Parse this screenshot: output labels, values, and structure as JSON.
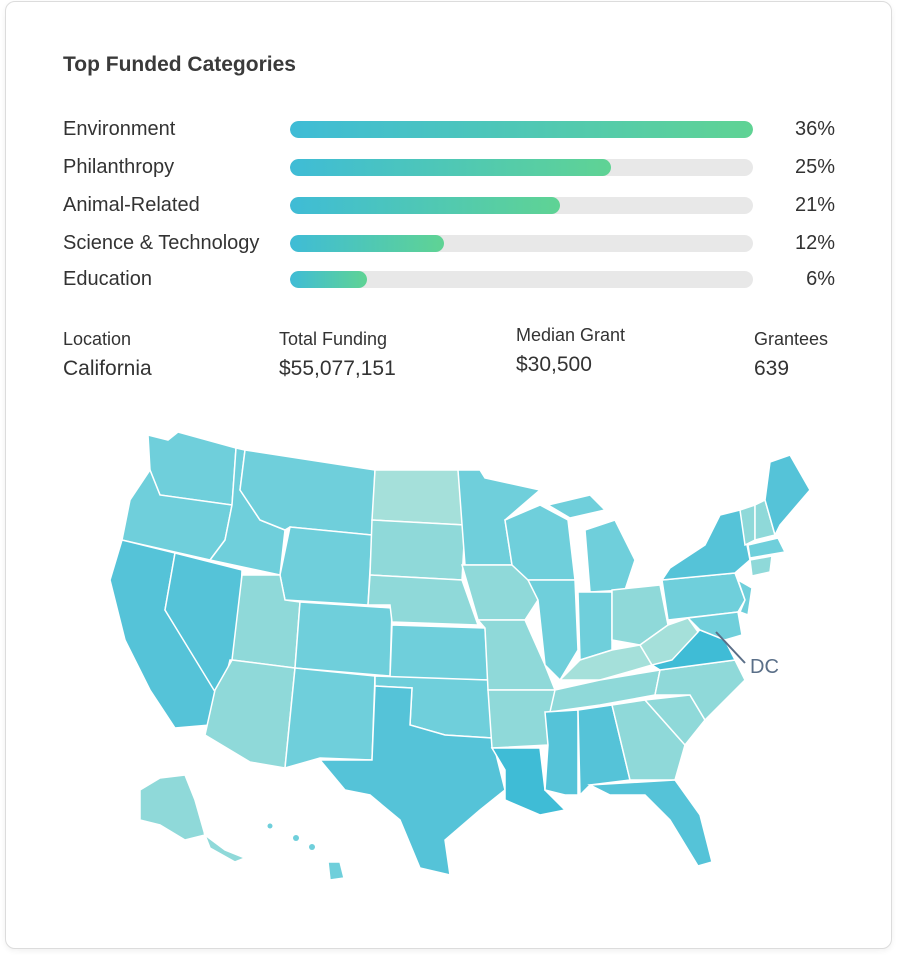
{
  "title": "Top Funded Categories",
  "categories": [
    {
      "label": "Environment",
      "percent_text": "36%",
      "fill": 1.0
    },
    {
      "label": "Philanthropy",
      "percent_text": "25%",
      "fill": 0.694
    },
    {
      "label": "Animal-Related",
      "percent_text": "21%",
      "fill": 0.583
    },
    {
      "label": "Science & Technology",
      "percent_text": "12%",
      "fill": 0.333
    },
    {
      "label": "Education",
      "percent_text": "6%",
      "fill": 0.167
    }
  ],
  "stats": {
    "location": {
      "label": "Location",
      "value": "California"
    },
    "total_funding": {
      "label": "Total Funding",
      "value": "$55,077,151"
    },
    "median_grant": {
      "label": "Median Grant",
      "value": "$30,500"
    },
    "grantees": {
      "label": "Grantees",
      "value": "639"
    }
  },
  "map": {
    "dc_label": "DC",
    "selected_state": "California",
    "colors": {
      "light": "#a5e0da",
      "pale": "#8fd9d9",
      "mid": "#6fcfdb",
      "dark": "#55c3d8",
      "darkest": "#3fbcd6",
      "bar_start": "#3fbcd6",
      "bar_end": "#5fd394"
    }
  }
}
